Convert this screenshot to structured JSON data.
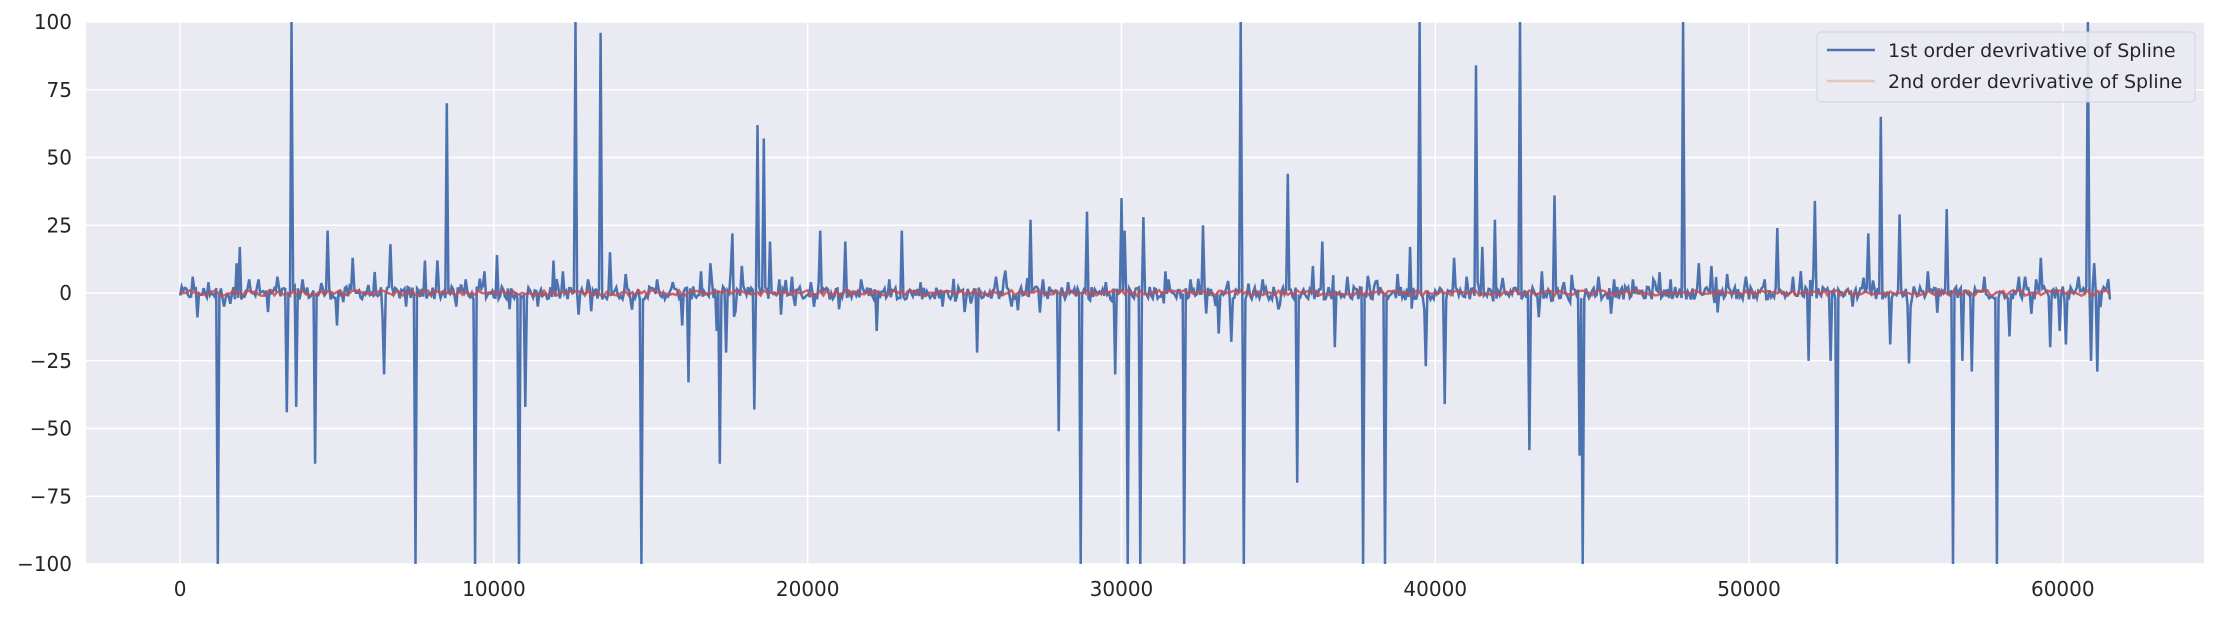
{
  "chart_data": {
    "type": "line",
    "title": "",
    "xlabel": "",
    "ylabel": "",
    "xlim": [
      -3000,
      64500
    ],
    "ylim": [
      -100,
      100
    ],
    "x_ticks": [
      0,
      10000,
      20000,
      30000,
      40000,
      50000,
      60000
    ],
    "x_tick_labels": [
      "0",
      "10000",
      "20000",
      "30000",
      "40000",
      "50000",
      "60000"
    ],
    "y_ticks": [
      -100,
      -75,
      -50,
      -25,
      0,
      25,
      50,
      75,
      100
    ],
    "y_tick_labels": [
      "−100",
      "−75",
      "−50",
      "−25",
      "0",
      "25",
      "50",
      "75",
      "100"
    ],
    "grid": true,
    "legend_position": "top-right",
    "colors": {
      "series1": "#4c72b0",
      "series2": "#dd8452",
      "background": "#eaeaf2",
      "grid": "#ffffff"
    },
    "series": [
      {
        "name": "1st order devrivative of Spline",
        "x_range": [
          0,
          61500
        ],
        "spikes": [
          [
            400,
            6
          ],
          [
            550,
            -9
          ],
          [
            900,
            4
          ],
          [
            1200,
            -100
          ],
          [
            1400,
            -5
          ],
          [
            1600,
            -4
          ],
          [
            1800,
            11
          ],
          [
            1900,
            17
          ],
          [
            2200,
            5
          ],
          [
            2500,
            5
          ],
          [
            2800,
            -7
          ],
          [
            3100,
            6
          ],
          [
            3400,
            -44
          ],
          [
            3550,
            100
          ],
          [
            3700,
            -42
          ],
          [
            3900,
            5
          ],
          [
            4300,
            -63
          ],
          [
            4700,
            23
          ],
          [
            5000,
            -12
          ],
          [
            5500,
            13
          ],
          [
            6000,
            3
          ],
          [
            6500,
            -30
          ],
          [
            6700,
            18
          ],
          [
            7200,
            -5
          ],
          [
            7500,
            -100
          ],
          [
            7800,
            12
          ],
          [
            8200,
            12
          ],
          [
            8500,
            70
          ],
          [
            8800,
            -5
          ],
          [
            9100,
            5
          ],
          [
            9400,
            -100
          ],
          [
            9700,
            8
          ],
          [
            10100,
            14
          ],
          [
            10500,
            -6
          ],
          [
            10800,
            -100
          ],
          [
            11000,
            -42
          ],
          [
            11400,
            -5
          ],
          [
            11900,
            12
          ],
          [
            12200,
            8
          ],
          [
            12600,
            100
          ],
          [
            12700,
            -8
          ],
          [
            13000,
            5
          ],
          [
            13400,
            96
          ],
          [
            13700,
            15
          ],
          [
            14200,
            7
          ],
          [
            14700,
            -100
          ],
          [
            15200,
            5
          ],
          [
            15700,
            4
          ],
          [
            16000,
            -12
          ],
          [
            16200,
            -33
          ],
          [
            16600,
            8
          ],
          [
            16900,
            11
          ],
          [
            17100,
            -14
          ],
          [
            17200,
            -63
          ],
          [
            17400,
            -22
          ],
          [
            17600,
            22
          ],
          [
            17900,
            10
          ],
          [
            18300,
            -43
          ],
          [
            18400,
            62
          ],
          [
            18600,
            57
          ],
          [
            18800,
            19
          ],
          [
            19100,
            5
          ],
          [
            19500,
            6
          ],
          [
            20100,
            4
          ],
          [
            20400,
            23
          ],
          [
            21000,
            -6
          ],
          [
            21200,
            19
          ],
          [
            21700,
            5
          ],
          [
            22200,
            -14
          ],
          [
            22600,
            5
          ],
          [
            23000,
            23
          ],
          [
            23600,
            4
          ],
          [
            24300,
            -5
          ],
          [
            25000,
            -7
          ],
          [
            25400,
            -22
          ],
          [
            26000,
            6
          ],
          [
            26500,
            -5
          ],
          [
            27100,
            27
          ],
          [
            27500,
            5
          ],
          [
            28000,
            -51
          ],
          [
            28300,
            4
          ],
          [
            28700,
            -100
          ],
          [
            28900,
            30
          ],
          [
            29500,
            4
          ],
          [
            29800,
            -30
          ],
          [
            30000,
            35
          ],
          [
            30100,
            23
          ],
          [
            30200,
            -100
          ],
          [
            30600,
            -100
          ],
          [
            30700,
            28
          ],
          [
            31500,
            5
          ],
          [
            32000,
            -100
          ],
          [
            32200,
            5
          ],
          [
            32600,
            25
          ],
          [
            33100,
            -15
          ],
          [
            33500,
            -18
          ],
          [
            33800,
            100
          ],
          [
            33900,
            -100
          ],
          [
            34500,
            5
          ],
          [
            35000,
            -6
          ],
          [
            35300,
            44
          ],
          [
            35600,
            -70
          ],
          [
            36100,
            10
          ],
          [
            36400,
            19
          ],
          [
            36800,
            -20
          ],
          [
            37200,
            6
          ],
          [
            37700,
            -100
          ],
          [
            37900,
            3
          ],
          [
            38400,
            -100
          ],
          [
            38800,
            7
          ],
          [
            39200,
            17
          ],
          [
            39500,
            100
          ],
          [
            39700,
            -27
          ],
          [
            40300,
            -41
          ],
          [
            40600,
            13
          ],
          [
            41000,
            6
          ],
          [
            41300,
            84
          ],
          [
            41500,
            17
          ],
          [
            41900,
            27
          ],
          [
            42700,
            100
          ],
          [
            43000,
            -58
          ],
          [
            43400,
            8
          ],
          [
            43800,
            36
          ],
          [
            44100,
            4
          ],
          [
            44600,
            -60
          ],
          [
            44700,
            -100
          ],
          [
            45200,
            6
          ],
          [
            45700,
            5
          ],
          [
            46300,
            5
          ],
          [
            47000,
            4
          ],
          [
            47500,
            5
          ],
          [
            47900,
            100
          ],
          [
            48400,
            11
          ],
          [
            48800,
            10
          ],
          [
            49300,
            7
          ],
          [
            49900,
            6
          ],
          [
            50500,
            5
          ],
          [
            50900,
            24
          ],
          [
            51400,
            6
          ],
          [
            51900,
            -25
          ],
          [
            52100,
            34
          ],
          [
            52600,
            -25
          ],
          [
            52800,
            -100
          ],
          [
            53300,
            -5
          ],
          [
            53800,
            22
          ],
          [
            54200,
            65
          ],
          [
            54500,
            -19
          ],
          [
            54800,
            29
          ],
          [
            55100,
            -26
          ],
          [
            55700,
            8
          ],
          [
            56300,
            31
          ],
          [
            56500,
            -100
          ],
          [
            56800,
            -25
          ],
          [
            57100,
            -29
          ],
          [
            57500,
            6
          ],
          [
            57900,
            -100
          ],
          [
            58300,
            -16
          ],
          [
            58800,
            6
          ],
          [
            59300,
            13
          ],
          [
            59600,
            -20
          ],
          [
            59900,
            -14
          ],
          [
            60100,
            -19
          ],
          [
            60500,
            6
          ],
          [
            60800,
            100
          ],
          [
            60900,
            -25
          ],
          [
            61000,
            11
          ],
          [
            61100,
            -29
          ],
          [
            61400,
            2
          ]
        ],
        "baseline_noise_amplitude": 3
      },
      {
        "name": "2nd order devrivative of Spline",
        "x_range": [
          0,
          61500
        ],
        "baseline_noise_amplitude": 1
      }
    ]
  }
}
